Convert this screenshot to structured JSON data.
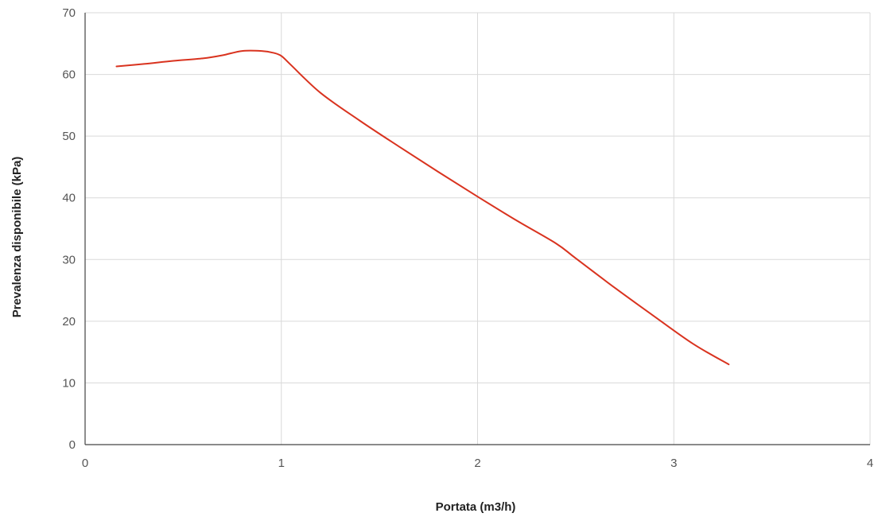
{
  "chart_data": {
    "type": "line",
    "xlabel": "Portata (m3/h)",
    "ylabel": "Prevalenza disponibile (kPa)",
    "xlim": [
      0,
      4
    ],
    "ylim": [
      0,
      70
    ],
    "x_ticks": [
      "0",
      "1",
      "2",
      "3",
      "4"
    ],
    "y_ticks": [
      "0",
      "10",
      "20",
      "30",
      "40",
      "50",
      "60",
      "70"
    ],
    "grid": true,
    "legend": "none",
    "series": [
      {
        "color": "#d9331f",
        "x": [
          0.16,
          0.3,
          0.45,
          0.6,
          0.7,
          0.8,
          0.9,
          0.96,
          1.0,
          1.05,
          1.2,
          1.4,
          1.6,
          1.8,
          2.0,
          2.2,
          2.4,
          2.5,
          2.7,
          2.9,
          3.1,
          3.28
        ],
        "y": [
          61.3,
          61.7,
          62.2,
          62.6,
          63.1,
          63.8,
          63.8,
          63.5,
          63.0,
          61.5,
          57.0,
          52.5,
          48.3,
          44.2,
          40.2,
          36.3,
          32.6,
          30.2,
          25.4,
          20.8,
          16.3,
          13.0
        ]
      }
    ]
  }
}
